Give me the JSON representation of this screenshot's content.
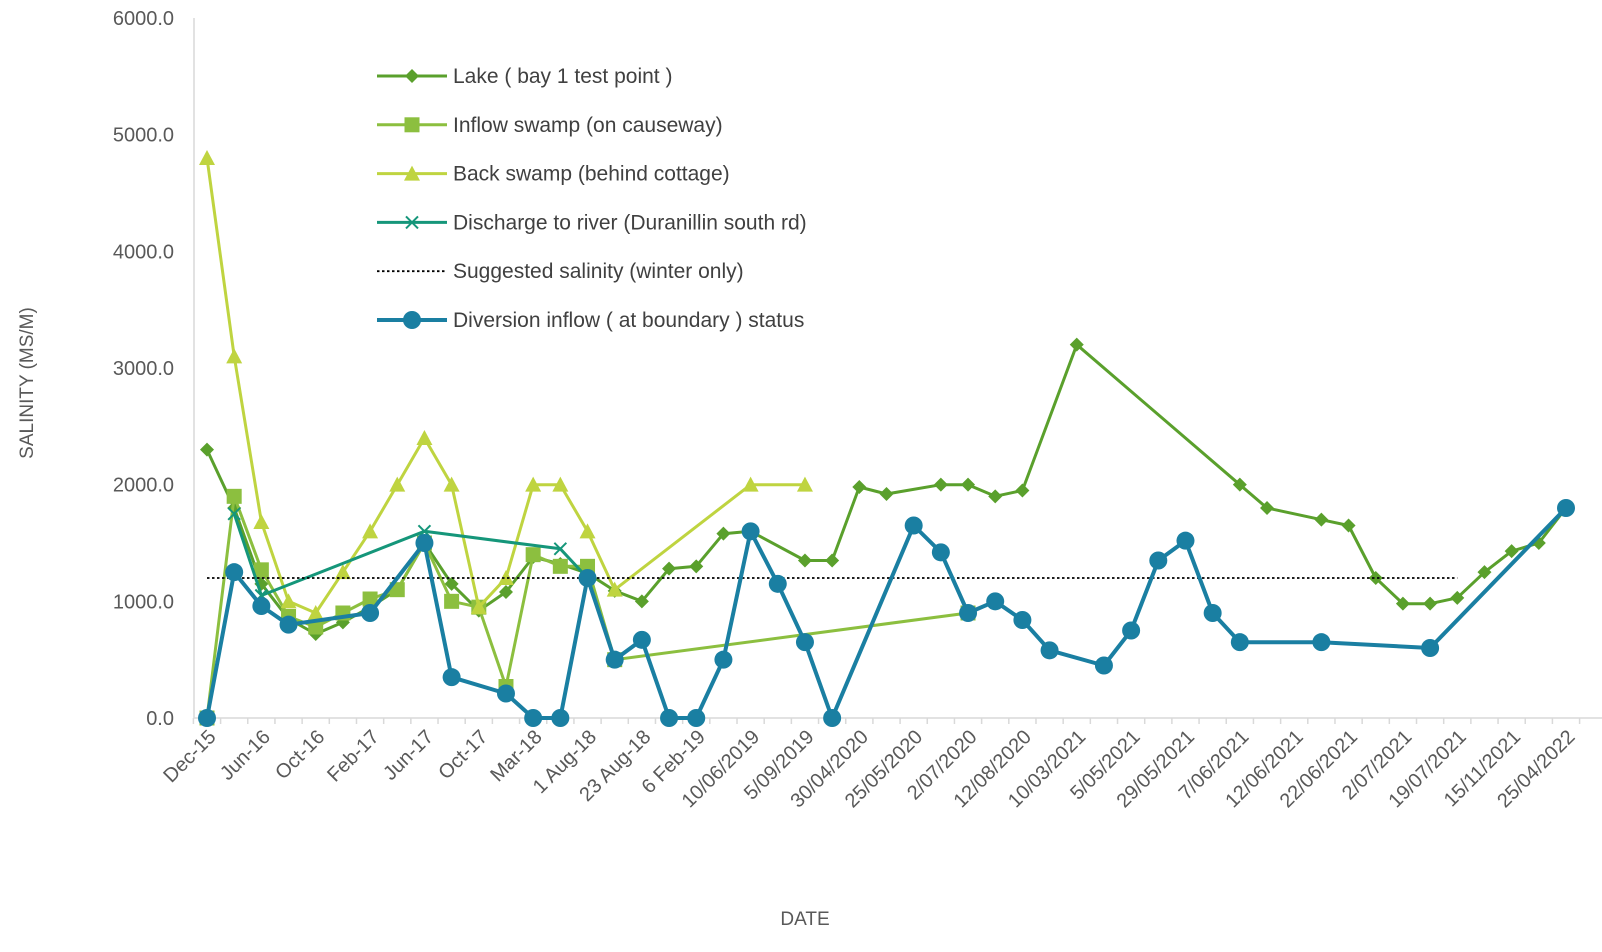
{
  "chart_data": {
    "type": "line",
    "xlabel": "DATE",
    "ylabel": "SALINITY (MS/M)",
    "ylim": [
      0,
      6000
    ],
    "yticks": [
      "0.0",
      "1000.0",
      "2000.0",
      "3000.0",
      "4000.0",
      "5000.0",
      "6000.0"
    ],
    "grid": false,
    "legend_position": "top-left inside plot",
    "categories": [
      "Dec-15",
      "",
      "Jun-16",
      "",
      "Oct-16",
      "",
      "Feb-17",
      "",
      "Jun-17",
      "",
      "Oct-17",
      "",
      "Mar-18",
      "",
      "1 Aug-18",
      "",
      "23 Aug-18",
      "",
      "6 Feb-19",
      "",
      "10/06/2019",
      "",
      "5/09/2019",
      "",
      "30/04/2020",
      "",
      "25/05/2020",
      "",
      "2/07/2020",
      "",
      "12/08/2020",
      "",
      "10/03/2021",
      "",
      "5/05/2021",
      "",
      "29/05/2021",
      "",
      "7/06/2021",
      "",
      "12/06/2021",
      "",
      "22/06/2021",
      "",
      "2/07/2021",
      "",
      "19/07/2021",
      "",
      "15/11/2021",
      "",
      "25/04/2022",
      ""
    ],
    "series": [
      {
        "name": "Lake ( bay 1 test point )",
        "color": "#5aa02c",
        "marker": "diamond",
        "points": [
          [
            0,
            2300
          ],
          [
            1,
            1800
          ],
          [
            2,
            1150
          ],
          [
            3,
            850
          ],
          [
            4,
            720
          ],
          [
            5,
            820
          ],
          [
            6,
            950
          ],
          [
            7,
            1100
          ],
          [
            8,
            1500
          ],
          [
            9,
            1150
          ],
          [
            10,
            920
          ],
          [
            11,
            1080
          ],
          [
            12,
            1380
          ],
          [
            13,
            1320
          ],
          [
            14,
            1240
          ],
          [
            15,
            1090
          ],
          [
            16,
            1000
          ],
          [
            17,
            1280
          ],
          [
            18,
            1300
          ],
          [
            19,
            1580
          ],
          [
            20,
            1600
          ],
          [
            22,
            1350
          ],
          [
            23,
            1350
          ],
          [
            24,
            1980
          ],
          [
            25,
            1920
          ],
          [
            27,
            2000
          ],
          [
            28,
            2000
          ],
          [
            29,
            1900
          ],
          [
            30,
            1950
          ],
          [
            32,
            3200
          ],
          [
            38,
            2000
          ],
          [
            39,
            1800
          ],
          [
            41,
            1700
          ],
          [
            42,
            1650
          ],
          [
            43,
            1200
          ],
          [
            44,
            980
          ],
          [
            45,
            980
          ],
          [
            46,
            1030
          ],
          [
            47,
            1250
          ],
          [
            48,
            1430
          ],
          [
            49,
            1500
          ],
          [
            50,
            1800
          ]
        ]
      },
      {
        "name": "Inflow swamp (on causeway)",
        "color": "#8cbf3f",
        "marker": "square",
        "points": [
          [
            0,
            0
          ],
          [
            1,
            1900
          ],
          [
            2,
            1270
          ],
          [
            3,
            870
          ],
          [
            4,
            780
          ],
          [
            5,
            900
          ],
          [
            6,
            1020
          ],
          [
            7,
            1100
          ],
          [
            8,
            1500
          ],
          [
            9,
            1000
          ],
          [
            10,
            950
          ],
          [
            11,
            270
          ],
          [
            12,
            1400
          ],
          [
            13,
            1300
          ],
          [
            14,
            1300
          ],
          [
            15,
            500
          ],
          [
            28,
            900
          ]
        ]
      },
      {
        "name": "Back swamp (behind cottage)",
        "color": "#bfd440",
        "marker": "triangle",
        "points": [
          [
            0,
            4800
          ],
          [
            1,
            3100
          ],
          [
            2,
            1680
          ],
          [
            3,
            1000
          ],
          [
            4,
            900
          ],
          [
            5,
            1250
          ],
          [
            6,
            1600
          ],
          [
            7,
            2000
          ],
          [
            8,
            2400
          ],
          [
            9,
            2000
          ],
          [
            10,
            950
          ],
          [
            11,
            1200
          ],
          [
            12,
            2000
          ],
          [
            13,
            2000
          ],
          [
            14,
            1600
          ],
          [
            15,
            1100
          ],
          [
            20,
            2000
          ],
          [
            22,
            2000
          ]
        ]
      },
      {
        "name": "Discharge to river (Duranillin south rd)",
        "color": "#15967a",
        "marker": "cross",
        "points": [
          [
            1,
            1750
          ],
          [
            2,
            1050
          ],
          [
            8,
            1600
          ],
          [
            13,
            1450
          ],
          [
            14,
            1200
          ]
        ]
      },
      {
        "name": "Suggested salinity (winter only)",
        "color": "#000000",
        "marker": "none",
        "dashed": true,
        "points": [
          [
            0,
            1200
          ],
          [
            46,
            1200
          ]
        ]
      },
      {
        "name": "Diversion inflow ( at boundary ) status",
        "color": "#1a7fa2",
        "marker": "circle",
        "points": [
          [
            0,
            0
          ],
          [
            1,
            1250
          ],
          [
            2,
            960
          ],
          [
            3,
            800
          ],
          [
            6,
            900
          ],
          [
            8,
            1500
          ],
          [
            9,
            350
          ],
          [
            11,
            210
          ],
          [
            12,
            0
          ],
          [
            13,
            0
          ],
          [
            14,
            1200
          ],
          [
            15,
            500
          ],
          [
            16,
            670
          ],
          [
            17,
            0
          ],
          [
            18,
            0
          ],
          [
            19,
            500
          ],
          [
            20,
            1600
          ],
          [
            21,
            1150
          ],
          [
            22,
            650
          ],
          [
            23,
            0
          ],
          [
            26,
            1650
          ],
          [
            27,
            1420
          ],
          [
            28,
            900
          ],
          [
            29,
            1000
          ],
          [
            30,
            840
          ],
          [
            31,
            580
          ],
          [
            33,
            450
          ],
          [
            34,
            750
          ],
          [
            35,
            1350
          ],
          [
            36,
            1520
          ],
          [
            37,
            900
          ],
          [
            38,
            650
          ],
          [
            41,
            650
          ],
          [
            45,
            600
          ],
          [
            50,
            1800
          ]
        ]
      }
    ]
  }
}
